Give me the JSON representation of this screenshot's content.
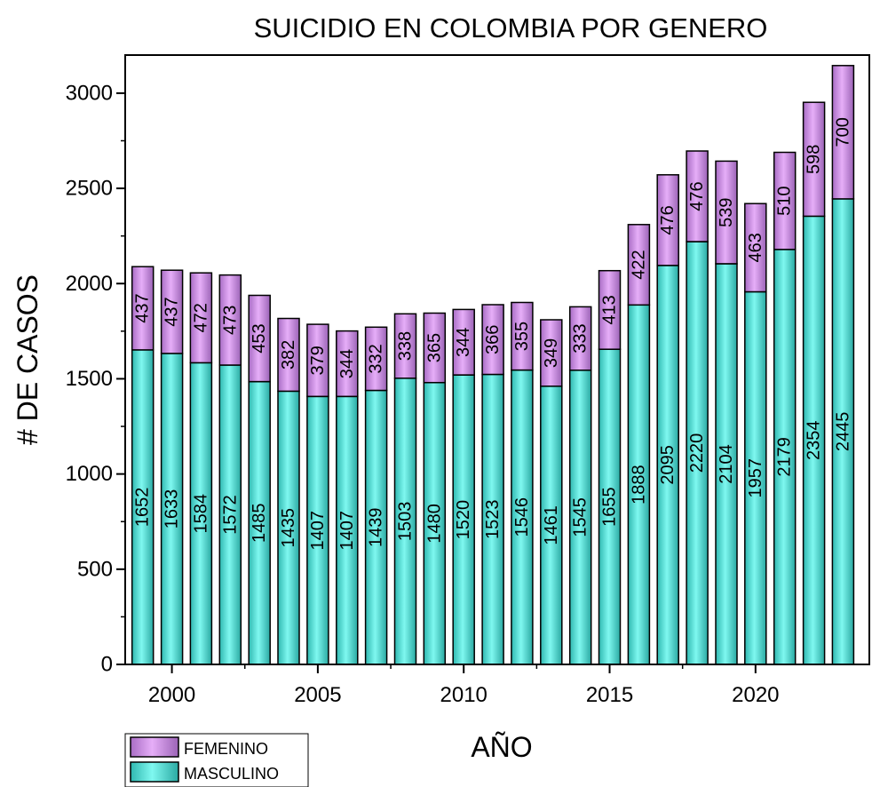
{
  "chart_data": {
    "type": "bar",
    "stacked": true,
    "title": "SUICIDIO EN COLOMBIA POR GENERO",
    "xlabel": "AÑO",
    "ylabel": "# DE CASOS",
    "ylim": [
      0,
      3200
    ],
    "yticks": [
      0,
      500,
      1000,
      1500,
      2000,
      2500,
      3000
    ],
    "xticks": [
      2000,
      2005,
      2010,
      2015,
      2020
    ],
    "xlim": [
      1998.4,
      2023.9
    ],
    "legend_position": "bottom-left",
    "x": [
      1999,
      2000,
      2001,
      2002,
      2003,
      2004,
      2005,
      2006,
      2007,
      2008,
      2009,
      2010,
      2011,
      2012,
      2013,
      2014,
      2015,
      2016,
      2017,
      2018,
      2019,
      2020,
      2021,
      2022,
      2023
    ],
    "series": [
      {
        "name": "MASCULINO",
        "color": "#66f0e8",
        "values": [
          1652,
          1633,
          1584,
          1572,
          1485,
          1435,
          1407,
          1407,
          1439,
          1503,
          1480,
          1520,
          1523,
          1546,
          1461,
          1545,
          1655,
          1888,
          2095,
          2220,
          2104,
          1957,
          2179,
          2354,
          2445
        ]
      },
      {
        "name": "FEMENINO",
        "color": "#da9af0",
        "values": [
          437,
          437,
          472,
          473,
          453,
          382,
          379,
          344,
          332,
          338,
          365,
          344,
          366,
          355,
          349,
          333,
          413,
          422,
          476,
          476,
          539,
          463,
          510,
          598,
          700
        ]
      }
    ]
  }
}
